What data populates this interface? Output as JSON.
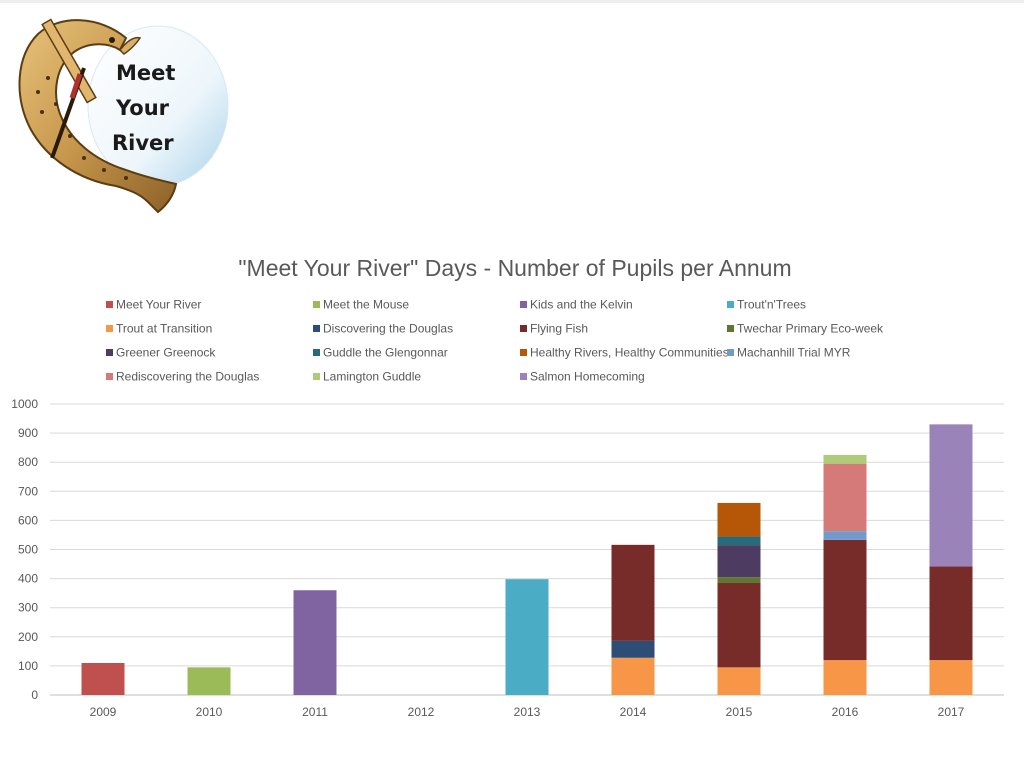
{
  "logo": {
    "lines": [
      "Meet",
      "Your",
      "River"
    ]
  },
  "chart_data": {
    "type": "bar",
    "stacked": true,
    "title": "\"Meet Your River\" Days - Number of Pupils per Annum",
    "xlabel": "",
    "ylabel": "",
    "ylim": [
      0,
      1000
    ],
    "yticks": [
      0,
      100,
      200,
      300,
      400,
      500,
      600,
      700,
      800,
      900,
      1000
    ],
    "grid": true,
    "legend_position": "top",
    "categories": [
      "2009",
      "2010",
      "2011",
      "2012",
      "2013",
      "2014",
      "2015",
      "2016",
      "2017"
    ],
    "series": [
      {
        "name": "Meet Your River",
        "color": "#C0504D",
        "values": [
          110,
          0,
          0,
          0,
          0,
          0,
          0,
          0,
          0
        ]
      },
      {
        "name": "Meet the Mouse",
        "color": "#9BBB59",
        "values": [
          0,
          95,
          0,
          0,
          0,
          0,
          0,
          0,
          0
        ]
      },
      {
        "name": "Kids and the Kelvin",
        "color": "#8064A2",
        "values": [
          0,
          0,
          360,
          0,
          0,
          0,
          0,
          0,
          0
        ]
      },
      {
        "name": "Trout'n'Trees",
        "color": "#4BACC6",
        "values": [
          0,
          0,
          0,
          0,
          398,
          0,
          0,
          0,
          0
        ]
      },
      {
        "name": "Trout at Transition",
        "color": "#F79646",
        "values": [
          0,
          0,
          0,
          0,
          0,
          128,
          95,
          120,
          120
        ]
      },
      {
        "name": "Discovering the Douglas",
        "color": "#2C4D75",
        "values": [
          0,
          0,
          0,
          0,
          0,
          58,
          0,
          0,
          0
        ]
      },
      {
        "name": "Flying Fish",
        "color": "#772C2A",
        "values": [
          0,
          0,
          0,
          0,
          0,
          330,
          290,
          413,
          322
        ]
      },
      {
        "name": "Twechar Primary Eco-week",
        "color": "#5F7530",
        "values": [
          0,
          0,
          0,
          0,
          0,
          0,
          20,
          0,
          0
        ]
      },
      {
        "name": "Greener Greenock",
        "color": "#4D3B62",
        "values": [
          0,
          0,
          0,
          0,
          0,
          0,
          110,
          0,
          0
        ]
      },
      {
        "name": "Guddle the Glengonnar",
        "color": "#276A7C",
        "values": [
          0,
          0,
          0,
          0,
          0,
          0,
          30,
          0,
          0
        ]
      },
      {
        "name": "Healthy Rivers, Healthy Communities",
        "color": "#B65708",
        "values": [
          0,
          0,
          0,
          0,
          0,
          0,
          115,
          0,
          0
        ]
      },
      {
        "name": "Machanhill Trial MYR",
        "color": "#729ACA",
        "values": [
          0,
          0,
          0,
          0,
          0,
          0,
          0,
          30,
          0
        ]
      },
      {
        "name": "Rediscovering the Douglas",
        "color": "#D57A78",
        "values": [
          0,
          0,
          0,
          0,
          0,
          0,
          0,
          232,
          0
        ]
      },
      {
        "name": "Lamington Guddle",
        "color": "#AFCA79",
        "values": [
          0,
          0,
          0,
          0,
          0,
          0,
          0,
          30,
          0
        ]
      },
      {
        "name": "Salmon Homecoming",
        "color": "#9A83B8",
        "values": [
          0,
          0,
          0,
          0,
          0,
          0,
          0,
          0,
          488
        ]
      }
    ]
  }
}
